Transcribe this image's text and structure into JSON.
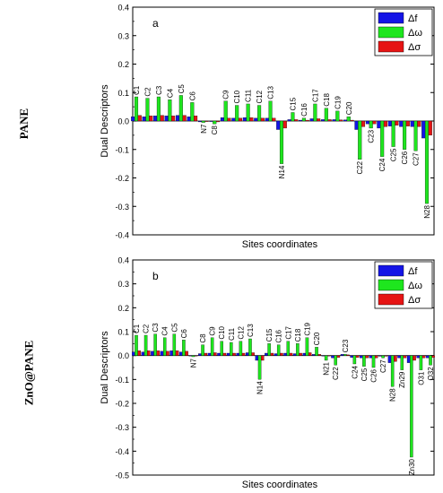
{
  "row_labels": [
    "PANE",
    "ZnO@PANE"
  ],
  "colors": {
    "df": "#1414e6",
    "dw": "#1ee61e",
    "ds": "#e61414"
  },
  "chart_data": [
    {
      "type": "bar",
      "panel_label": "a",
      "xlabel": "Sites coordinates",
      "ylabel": "Dual Descriptors",
      "ylim": [
        -0.4,
        0.4
      ],
      "yticks": [
        "0.4",
        "0.3",
        "0.2",
        "0.1",
        "0.0",
        "-0.1",
        "-0.2",
        "-0.3",
        "-0.4"
      ],
      "legend": [
        "Δf",
        "Δω",
        "Δσ"
      ],
      "legend_position": "top-right",
      "categories": [
        "C1",
        "C2",
        "C3",
        "C4",
        "C5",
        "C6",
        "N7",
        "C8",
        "C9",
        "C10",
        "C11",
        "C12",
        "C13",
        "N14",
        "C15",
        "C16",
        "C17",
        "C18",
        "C19",
        "C20",
        "C22",
        "C23",
        "C24",
        "C25",
        "C26",
        "C27",
        "N28"
      ],
      "series": [
        {
          "name": "Δf",
          "values": [
            0.015,
            0.015,
            0.018,
            0.018,
            0.02,
            0.015,
            -0.003,
            -0.002,
            0.012,
            0.01,
            0.012,
            0.01,
            0.01,
            -0.03,
            0.005,
            0.003,
            0.008,
            0.005,
            0.005,
            0.004,
            -0.03,
            -0.01,
            -0.025,
            -0.018,
            -0.02,
            -0.02,
            -0.06
          ]
        },
        {
          "name": "Δω",
          "values": [
            0.085,
            0.08,
            0.085,
            0.075,
            0.09,
            0.065,
            -0.005,
            -0.01,
            0.07,
            0.055,
            0.06,
            0.055,
            0.07,
            -0.15,
            0.03,
            0.01,
            0.06,
            0.045,
            0.035,
            0.015,
            -0.135,
            -0.025,
            -0.125,
            -0.09,
            -0.1,
            -0.105,
            -0.29
          ]
        },
        {
          "name": "Δσ",
          "values": [
            0.02,
            0.018,
            0.02,
            0.018,
            0.02,
            0.018,
            -0.002,
            -0.003,
            0.01,
            0.01,
            0.012,
            0.01,
            0.01,
            -0.025,
            0.005,
            0.003,
            0.008,
            0.005,
            0.004,
            0.003,
            -0.02,
            -0.01,
            -0.02,
            -0.015,
            -0.018,
            -0.02,
            -0.05
          ]
        }
      ]
    },
    {
      "type": "bar",
      "panel_label": "b",
      "xlabel": "Sites coordinates",
      "ylabel": "Dual Descriptors",
      "ylim": [
        -0.5,
        0.4
      ],
      "yticks": [
        "0.4",
        "0.3",
        "0.2",
        "0.1",
        "0.0",
        "-0.1",
        "-0.2",
        "-0.3",
        "-0.4",
        "-0.5"
      ],
      "legend": [
        "Δf",
        "Δω",
        "Δσ"
      ],
      "legend_position": "top-right",
      "categories": [
        "C1",
        "C2",
        "C3",
        "C4",
        "C5",
        "C6",
        "N7",
        "C8",
        "C9",
        "C10",
        "C11",
        "C12",
        "C13",
        "N14",
        "C15",
        "C16",
        "C17",
        "C18",
        "C19",
        "C20",
        "N21",
        "C22",
        "C23",
        "C24",
        "C25",
        "C26",
        "C27",
        "N28",
        "Zn29",
        "Zn30",
        "O31",
        "O32"
      ],
      "series": [
        {
          "name": "Δf",
          "values": [
            0.015,
            0.015,
            0.018,
            0.018,
            0.02,
            0.015,
            -0.002,
            0.008,
            0.01,
            0.01,
            0.01,
            0.01,
            0.012,
            -0.02,
            0.01,
            0.008,
            0.01,
            0.008,
            0.01,
            0.005,
            -0.002,
            -0.01,
            0.005,
            -0.008,
            -0.01,
            -0.01,
            -0.003,
            -0.03,
            -0.01,
            -0.03,
            -0.01,
            -0.01
          ]
        },
        {
          "name": "Δω",
          "values": [
            0.085,
            0.085,
            0.09,
            0.075,
            0.09,
            0.065,
            -0.005,
            0.045,
            0.075,
            0.06,
            0.055,
            0.06,
            0.07,
            -0.1,
            0.05,
            0.045,
            0.06,
            0.05,
            0.075,
            0.035,
            -0.02,
            -0.04,
            0.005,
            -0.035,
            -0.045,
            -0.05,
            -0.01,
            -0.13,
            -0.06,
            -0.425,
            -0.06,
            -0.04
          ]
        },
        {
          "name": "Δσ",
          "values": [
            0.02,
            0.02,
            0.02,
            0.018,
            0.02,
            0.018,
            -0.002,
            0.01,
            0.012,
            0.01,
            0.01,
            0.01,
            0.012,
            -0.02,
            0.01,
            0.01,
            0.01,
            0.01,
            0.012,
            0.005,
            -0.002,
            -0.008,
            0.003,
            -0.008,
            -0.01,
            -0.01,
            -0.003,
            -0.025,
            -0.01,
            -0.02,
            -0.01,
            -0.008
          ]
        }
      ]
    }
  ]
}
